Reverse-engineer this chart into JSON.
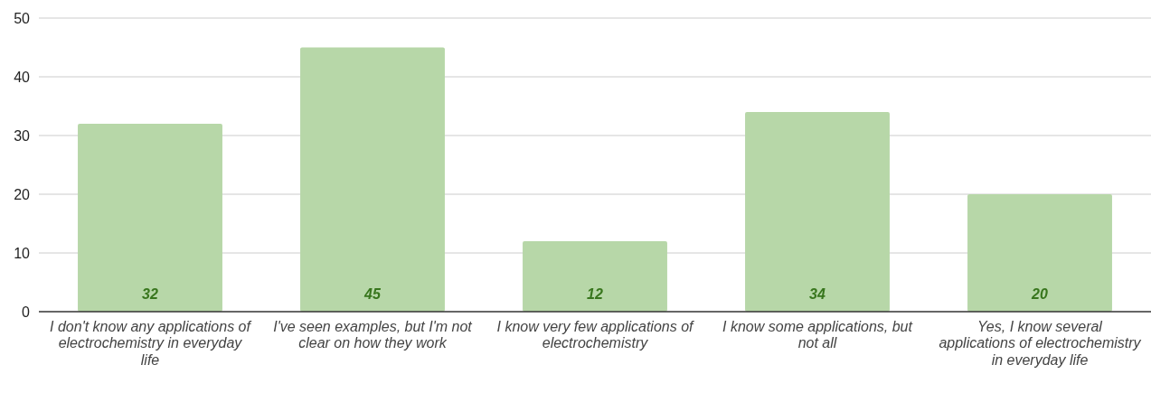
{
  "chart_data": {
    "type": "bar",
    "categories": [
      "I don't know any applications of electrochemistry in everyday life",
      "I've seen examples, but I'm not clear on how they work",
      "I know very few applications of electrochemistry",
      "I know some applications, but not all",
      "Yes, I know several applications of electrochemistry in everyday life"
    ],
    "values": [
      32,
      45,
      12,
      34,
      20
    ],
    "color": "#b7d7a8",
    "ylim": [
      0,
      50
    ],
    "yticks": [
      0,
      10,
      20,
      30,
      40,
      50
    ],
    "grid": "y",
    "data_labels": true
  }
}
